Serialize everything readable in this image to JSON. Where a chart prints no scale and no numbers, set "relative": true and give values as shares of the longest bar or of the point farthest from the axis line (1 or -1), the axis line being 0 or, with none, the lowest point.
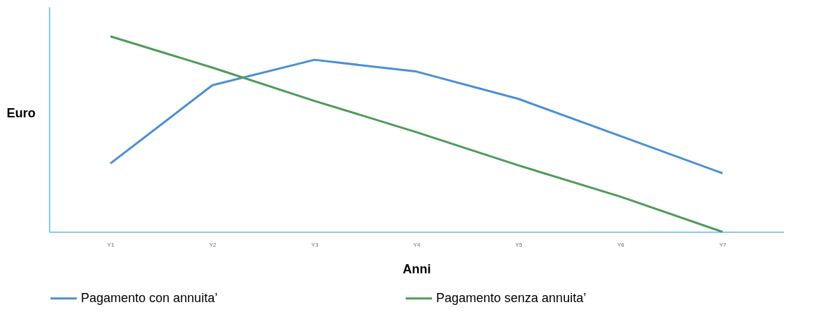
{
  "chart_data": {
    "type": "line",
    "relative": true,
    "xlabel": "Anni",
    "ylabel": "Euro",
    "categories": [
      "Y1",
      "Y2",
      "Y3",
      "Y4",
      "Y5",
      "Y6",
      "Y7"
    ],
    "legend": "bottom",
    "marker": "none",
    "line_style": "solid",
    "series": [
      {
        "name": "Pagamento con annuita’",
        "color": "#4a8fd4",
        "values": [
          0.35,
          0.75,
          0.88,
          0.82,
          0.68,
          0.49,
          0.3
        ]
      },
      {
        "name": "Pagamento senza annuita’",
        "color": "#4e9a5a",
        "values": [
          1,
          0.84,
          0.67,
          0.51,
          0.34,
          0.18,
          0
        ]
      }
    ]
  }
}
